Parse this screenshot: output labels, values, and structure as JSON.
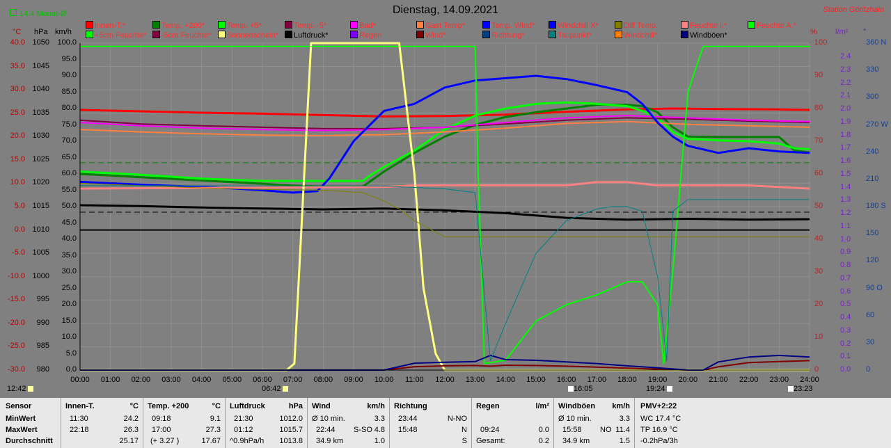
{
  "header": {
    "monat_label": "14.4 Monat-Ø",
    "title": "Dienstag, 14.09.2021",
    "station": "Station Göritzhain"
  },
  "legend": [
    {
      "label": "Innen-T.*",
      "color": "#ff0000"
    },
    {
      "label": "Temp. +200*",
      "color": "#008000"
    },
    {
      "label": "Temp. +5*",
      "color": "#00ff00"
    },
    {
      "label": "Temp. -5*",
      "color": "#800040"
    },
    {
      "label": "Bad*",
      "color": "#ff00ff"
    },
    {
      "label": "Gast Temp*",
      "color": "#ff8040"
    },
    {
      "label": "Temp. Wind*",
      "color": "#0000ff"
    },
    {
      "label": "Windchill X*",
      "color": "#0000ff"
    },
    {
      "label": "Diff Temp.",
      "color": "#808000"
    },
    {
      "label": "Feuchte I.*",
      "color": "#ff8080"
    },
    {
      "label": "Feuchte A.*",
      "color": "#00ff00"
    },
    {
      "label": "+5cm Feuchte*",
      "color": "#00ff00"
    },
    {
      "label": "-5cm Feuchte*",
      "color": "#800040"
    },
    {
      "label": "Sonnenschein*",
      "color": "#ffff80"
    },
    {
      "label": "Luftdruck*",
      "color": "#000000"
    },
    {
      "label": "Regen",
      "color": "#8000ff"
    },
    {
      "label": "Wind*",
      "color": "#800000"
    },
    {
      "label": "Richtung*",
      "color": "#004080"
    },
    {
      "label": "Taupunkt*",
      "color": "#008080"
    },
    {
      "label": "Windchill*",
      "color": "#ff8000"
    },
    {
      "label": "Windböen*",
      "color": "#000080"
    }
  ],
  "axis_headers": {
    "c": "°C",
    "hpa": "hPa",
    "kmh": "km/h",
    "pct": "%",
    "lm": "l/m²",
    "deg": "°"
  },
  "axes": {
    "c_ticks": [
      "40.0",
      "35.0",
      "30.0",
      "25.0",
      "20.0",
      "15.0",
      "10.0",
      "5.0",
      "0.0",
      "-5.0",
      "-10.0",
      "-15.0",
      "-20.0",
      "-25.0",
      "-30.0"
    ],
    "hpa_ticks": [
      "1050",
      "1045",
      "1040",
      "1035",
      "1030",
      "1025",
      "1020",
      "1015",
      "1010",
      "1005",
      "1000",
      "995",
      "990",
      "985",
      "980"
    ],
    "kmh_ticks": [
      "100.0",
      "95.0",
      "90.0",
      "85.0",
      "80.0",
      "75.0",
      "70.0",
      "65.0",
      "60.0",
      "55.0",
      "50.0",
      "45.0",
      "40.0",
      "35.0",
      "30.0",
      "25.0",
      "20.0",
      "15.0",
      "10.0",
      "5.0",
      "0.0"
    ],
    "pct_ticks": [
      "100",
      "90",
      "80",
      "70",
      "60",
      "50",
      "40",
      "30",
      "20",
      "10",
      "0"
    ],
    "lm_ticks": [
      "2.4",
      "2.3",
      "2.2",
      "2.1",
      "2.0",
      "1.9",
      "1.8",
      "1.7",
      "1.6",
      "1.5",
      "1.4",
      "1.3",
      "1.2",
      "1.1",
      "1.0",
      "0.9",
      "0.8",
      "0.7",
      "0.6",
      "0.5",
      "0.4",
      "0.3",
      "0.2",
      "0.1",
      "0.0"
    ],
    "deg_ticks": [
      "360 N",
      "330",
      "300",
      "270 W",
      "240",
      "210",
      "180 S",
      "150",
      "120",
      "90 O",
      "60",
      "30",
      "0"
    ],
    "x_ticks": [
      "00:00",
      "01:00",
      "02:00",
      "03:00",
      "04:00",
      "05:00",
      "06:00",
      "07:00",
      "08:00",
      "09:00",
      "10:00",
      "11:00",
      "12:00",
      "13:00",
      "14:00",
      "15:00",
      "16:00",
      "17:00",
      "18:00",
      "19:00",
      "20:00",
      "21:00",
      "22:00",
      "23:00",
      "24:00"
    ]
  },
  "markers": {
    "moon_rise": "12:42",
    "sunrise": "06:42",
    "moon_time": "16:05",
    "sunset": "19:24",
    "moon_set": "23:23"
  },
  "chart_data": {
    "type": "line",
    "title": "Dienstag, 14.09.2021",
    "x_range": [
      "00:00",
      "24:00"
    ],
    "ylim_temp_c": [
      -30,
      40
    ],
    "ylim_pressure_hpa": [
      980,
      1050
    ],
    "ylim_percent": [
      0,
      100
    ],
    "grid": true,
    "series": [
      {
        "name": "Innen-T.",
        "unit": "°C",
        "color": "#ff0000",
        "width": 3,
        "x": [
          0,
          2,
          4,
          6,
          8,
          10,
          12,
          14,
          16,
          18,
          19.5,
          21,
          23,
          24
        ],
        "y": [
          25.7,
          25.4,
          25.1,
          24.9,
          24.6,
          24.3,
          24.4,
          24.7,
          25.3,
          25.8,
          26.0,
          25.9,
          25.8,
          25.7
        ]
      },
      {
        "name": "Temp. +200",
        "unit": "°C",
        "color": "#008000",
        "width": 3,
        "x": [
          0,
          2,
          4,
          6,
          7,
          8,
          9.3,
          9.5,
          10,
          11,
          12,
          13,
          14,
          15,
          16,
          17,
          18,
          18.5,
          19,
          19.5,
          20,
          21,
          22,
          23,
          23.5,
          24
        ],
        "y": [
          12.0,
          11.3,
          10.6,
          9.9,
          9.5,
          9.3,
          9.3,
          10.2,
          12.5,
          16.5,
          20.0,
          22.5,
          24.2,
          25.2,
          26.0,
          26.8,
          26.8,
          26.5,
          25.2,
          22.0,
          20.0,
          19.9,
          19.9,
          19.9,
          17.0,
          16.6
        ]
      },
      {
        "name": "Temp. +5",
        "unit": "°C",
        "color": "#00ff00",
        "width": 3,
        "x": [
          0,
          2,
          4,
          6,
          8,
          9.3,
          9.5,
          10,
          11,
          12,
          13,
          14,
          15,
          16,
          17,
          18,
          18.5,
          19,
          19.5,
          20,
          21,
          22,
          23,
          23.5,
          24
        ],
        "y": [
          12.5,
          11.8,
          11.0,
          10.5,
          10.5,
          10.5,
          11.5,
          13.5,
          17.0,
          21.5,
          24.5,
          26.0,
          27.0,
          27.3,
          27.0,
          26.5,
          25.5,
          24.0,
          21.0,
          19.5,
          19.2,
          19.0,
          18.5,
          17.5,
          17.3
        ]
      },
      {
        "name": "Temp. -5",
        "unit": "°C",
        "color": "#800040",
        "width": 2,
        "x": [
          0,
          2,
          4,
          6,
          8,
          10,
          12,
          14,
          16,
          18,
          20,
          22,
          24
        ],
        "y": [
          23.5,
          22.7,
          22.3,
          22.0,
          21.7,
          21.7,
          22.0,
          22.7,
          23.5,
          24.0,
          23.7,
          23.3,
          23.0
        ]
      },
      {
        "name": "Bad",
        "unit": "°C",
        "color": "#ff00ff",
        "width": 2,
        "x": [
          0,
          2,
          4,
          6,
          8,
          10,
          12,
          14,
          16,
          18,
          20,
          22,
          24
        ],
        "y": [
          23.0,
          22.3,
          21.8,
          21.5,
          21.3,
          21.5,
          22.0,
          23.0,
          24.0,
          24.5,
          24.0,
          23.5,
          23.2
        ]
      },
      {
        "name": "Gast Temp",
        "unit": "°C",
        "color": "#ff8040",
        "width": 2,
        "x": [
          0,
          2,
          4,
          6,
          8,
          10,
          12,
          14,
          16,
          18,
          20,
          22,
          24
        ],
        "y": [
          21.5,
          21.0,
          20.6,
          20.3,
          20.2,
          20.4,
          21.0,
          21.8,
          22.8,
          23.2,
          22.6,
          22.3,
          22.0
        ]
      },
      {
        "name": "Temp. Wind",
        "unit": "°C",
        "color": "#0000ff",
        "width": 3,
        "x": [
          0,
          2,
          4,
          5,
          6,
          7,
          7.8,
          8.2,
          9,
          10,
          11,
          12,
          13,
          14,
          15,
          16,
          17,
          18,
          18.5,
          19,
          19.5,
          20,
          21,
          22,
          23,
          24
        ],
        "y": [
          10.3,
          9.7,
          9.2,
          8.9,
          8.5,
          8.0,
          8.3,
          11.0,
          19.0,
          25.5,
          27.0,
          30.5,
          32.0,
          32.5,
          33.0,
          32.3,
          31.0,
          29.5,
          27.0,
          23.0,
          20.0,
          18.0,
          16.5,
          17.5,
          16.8,
          16.5
        ]
      },
      {
        "name": "Feuchte I.",
        "unit": "%",
        "color": "#ff8080",
        "width": 3,
        "x": [
          0,
          10,
          11,
          11.2,
          16,
          17,
          18,
          19,
          20,
          21,
          22,
          24
        ],
        "y": [
          55.5,
          56.0,
          56.5,
          56.5,
          56.5,
          57.5,
          57.5,
          56.5,
          56.5,
          56.5,
          56.5,
          55.5
        ]
      },
      {
        "name": "Feuchte A.",
        "unit": "%",
        "color": "#00ff00",
        "width": 2,
        "x": [
          0,
          13.0,
          13.1,
          13.3,
          14,
          15,
          16,
          17,
          18,
          18.5,
          19,
          19.2,
          19.5,
          20,
          20.5,
          21,
          24
        ],
        "y": [
          99,
          99,
          60,
          2,
          3,
          15,
          20,
          23,
          27,
          27,
          20,
          2,
          30,
          85,
          99,
          99,
          99
        ]
      },
      {
        "name": "Luftdruck",
        "unit": "hPa",
        "color": "#000000",
        "width": 3,
        "x": [
          0,
          2,
          4,
          6,
          8,
          10,
          12,
          14,
          16,
          18,
          20,
          22,
          24
        ],
        "y": [
          1015.3,
          1015.1,
          1014.8,
          1014.6,
          1014.4,
          1014.6,
          1014.2,
          1013.6,
          1012.6,
          1012.2,
          1012.4,
          1012.2,
          1012.3
        ]
      },
      {
        "name": "Sonnenschein",
        "unit": "%",
        "color": "#ffff80",
        "width": 3,
        "x": [
          0,
          6.8,
          7.05,
          7.6,
          10.5,
          11,
          11.3,
          11.7,
          12,
          24
        ],
        "y": [
          0,
          0,
          2,
          100,
          100,
          60,
          25,
          5,
          0,
          0
        ]
      },
      {
        "name": "Wind",
        "unit": "km/h",
        "color": "#800000",
        "width": 2,
        "x": [
          0,
          10,
          11,
          12,
          13,
          13.5,
          14,
          15,
          16,
          17,
          18,
          19,
          20,
          20.5,
          21,
          22,
          23,
          24
        ],
        "y": [
          0,
          0,
          1.0,
          1.3,
          1.4,
          1.2,
          1.5,
          1.4,
          1.2,
          0.9,
          0.6,
          0.3,
          0,
          0,
          1.0,
          2.3,
          2.6,
          2.9
        ]
      },
      {
        "name": "Windböen",
        "unit": "km/h",
        "color": "#000080",
        "width": 2,
        "x": [
          0,
          10,
          11,
          12,
          13,
          13.5,
          14,
          15,
          16,
          17,
          18,
          19,
          20,
          20.5,
          21,
          22,
          23,
          24
        ],
        "y": [
          0,
          0,
          2.1,
          2.4,
          2.6,
          4.5,
          3.2,
          3.0,
          2.5,
          2.0,
          1.3,
          0.7,
          0,
          0,
          2.5,
          4.0,
          4.5,
          4.0
        ]
      },
      {
        "name": "Diff Temp.",
        "unit": "°C",
        "color": "#808000",
        "width": 1,
        "x": [
          0,
          2,
          4,
          6,
          8,
          9.3,
          10,
          10.5,
          11,
          12,
          24
        ],
        "y": [
          10.0,
          9.5,
          9.0,
          8.7,
          8.5,
          8.0,
          6.2,
          4.5,
          2.0,
          -1.5,
          -1.5
        ]
      },
      {
        "name": "Taupunkt",
        "unit": "°C",
        "color": "#008080",
        "width": 1,
        "x": [
          0,
          10,
          12,
          13,
          13.5,
          14,
          15,
          16,
          17,
          17.5,
          18,
          18.5,
          19,
          19.3,
          19.5,
          20,
          24
        ],
        "y": [
          9.5,
          9.4,
          8.8,
          8.0,
          -28.0,
          -20,
          -5.0,
          2.0,
          4.5,
          5.0,
          5.0,
          4.0,
          -10,
          -28,
          4.0,
          6.5,
          6.5
        ]
      }
    ],
    "reference_lines": [
      {
        "name": "Luftdruck avg",
        "unit": "hPa",
        "value": 1013.8,
        "style": "dashed"
      },
      {
        "name": "Temp avg",
        "unit": "°C",
        "value": 14.4,
        "style": "dashed",
        "color": "#008000"
      },
      {
        "name": "Zero",
        "unit": "°C",
        "value": 0.0,
        "style": "solid",
        "color": "#000000"
      }
    ]
  },
  "stats": {
    "sensor": {
      "title": "Sensor",
      "rows": [
        "MinWert",
        "MaxWert",
        "Durchschnitt"
      ]
    },
    "innen": {
      "title": "Innen-T.",
      "unit": "°C",
      "r1a": "11:30",
      "r1b": "24.2",
      "r2a": "22:18",
      "r2b": "26.3",
      "r3a": "",
      "r3b": "25.17"
    },
    "temp": {
      "title": "Temp. +200",
      "unit": "°C",
      "r1a": "09:18",
      "r1b": "9.1",
      "r2a": "17:00",
      "r2b": "27.3",
      "r3a": "(+ 3.27 )",
      "r3b": "17.67"
    },
    "luft": {
      "title": "Luftdruck",
      "unit": "hPa",
      "r1a": "21:30",
      "r1b": "1012.0",
      "r2a": "01:12",
      "r2b": "1015.7",
      "r3a": "^0.9hPa/h",
      "r3b": "1013.8"
    },
    "wind": {
      "title": "Wind",
      "unit": "km/h",
      "r1a": "Ø 10 min.",
      "r1b": "3.3",
      "r2a": "22:44",
      "r2m": "S-SO",
      "r2b": "4.8",
      "r3a": "34.9 km",
      "r3b": "1.0"
    },
    "richtung": {
      "title": "Richtung",
      "r1a": "23:44",
      "r1b": "N-NO",
      "r2a": "15:48",
      "r2b": "N",
      "r3b": "S"
    },
    "regen": {
      "title": "Regen",
      "unit": "l/m²",
      "r1a": "",
      "r1b": "",
      "r2a": "09:24",
      "r2b": "0.0",
      "r3a": "Gesamt:",
      "r3b": "0.2"
    },
    "boeen": {
      "title": "Windböen",
      "unit": "km/h",
      "r1a": "Ø 10 min.",
      "r1b": "3.3",
      "r2a": "15:58",
      "r2m": "NO",
      "r2b": "11.4",
      "r3a": "34.9 km",
      "r3b": "1.5"
    },
    "pmv": {
      "title": "PMV+2:22",
      "r1": "WC 17.4 °C",
      "r2": "TP 16.9 °C",
      "r3": "-0.2hPa/3h"
    }
  }
}
